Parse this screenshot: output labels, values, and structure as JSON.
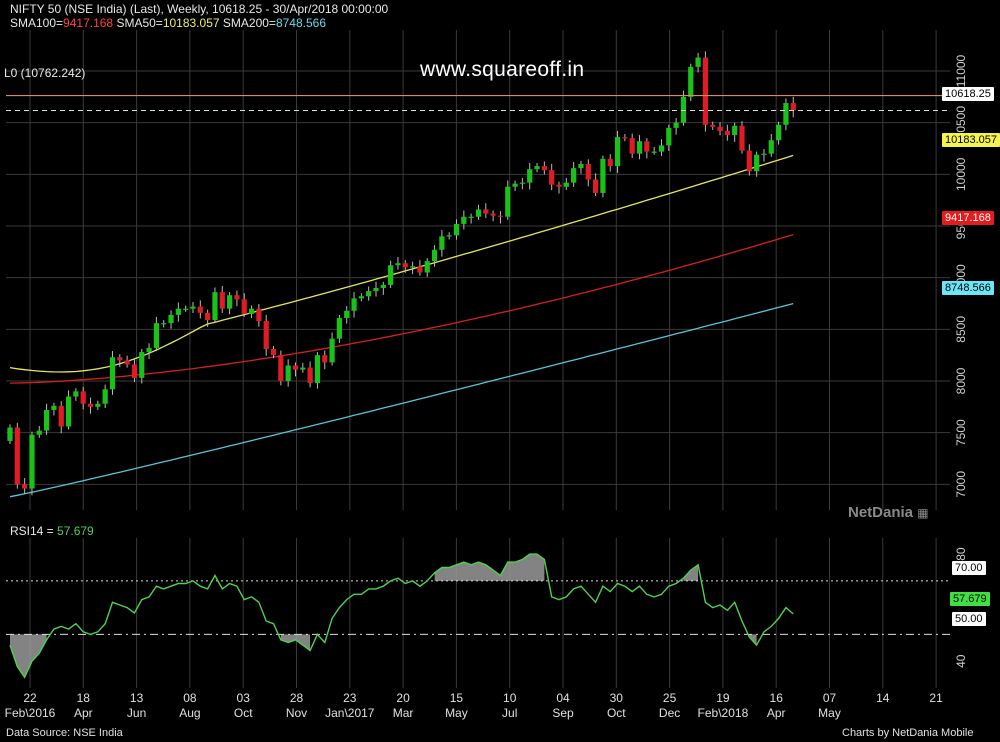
{
  "header": {
    "title": "NIFTY 50 (NSE India) (Last), Weekly, 10618.25 - 30/Apr/2018 00:00:00",
    "sma100_label": "SMA100=",
    "sma100_value": "9417.168",
    "sma50_label": "SMA50=",
    "sma50_value": "10183.057",
    "sma200_label": "SMA200=",
    "sma200_value": "8748.566",
    "level_label": "L0 (10762.242)"
  },
  "watermark_site": "www.squareoff.in",
  "brand": "NetDania",
  "footer": {
    "left": "Data Source: NSE India",
    "right": "Charts by NetDania Mobile"
  },
  "colors": {
    "up": "#19c219",
    "down": "#e01b24",
    "sma50": "#e6e65a",
    "sma100": "#d42020",
    "sma200": "#58c4d8",
    "level": "#e08a5a",
    "rsi": "#4fd24f",
    "grid": "#3a3a3a"
  },
  "chart_data": [
    {
      "type": "candlestick",
      "title": "NIFTY 50 (NSE India) (Last), Weekly",
      "ylim": [
        6800,
        11300
      ],
      "yticks": [
        7000,
        7500,
        8000,
        8500,
        9000,
        9500,
        10000,
        10500,
        11000
      ],
      "x_ticks": [
        {
          "day": "22",
          "month": "Feb\\2016"
        },
        {
          "day": "18",
          "month": "Apr"
        },
        {
          "day": "13",
          "month": "Jun"
        },
        {
          "day": "08",
          "month": "Aug"
        },
        {
          "day": "03",
          "month": "Oct"
        },
        {
          "day": "28",
          "month": "Nov"
        },
        {
          "day": "23",
          "month": "Jan\\2017"
        },
        {
          "day": "20",
          "month": "Mar"
        },
        {
          "day": "15",
          "month": "May"
        },
        {
          "day": "10",
          "month": "Jul"
        },
        {
          "day": "04",
          "month": "Sep"
        },
        {
          "day": "30",
          "month": "Oct"
        },
        {
          "day": "25",
          "month": "Dec"
        },
        {
          "day": "19",
          "month": "Feb\\2018"
        },
        {
          "day": "16",
          "month": "Apr"
        },
        {
          "day": "07",
          "month": "May"
        },
        {
          "day": "14",
          "month": ""
        },
        {
          "day": "21",
          "month": ""
        }
      ],
      "closes": [
        7550,
        7000,
        6960,
        7480,
        7520,
        7720,
        7760,
        7560,
        7850,
        7900,
        7780,
        7750,
        7780,
        7920,
        8230,
        8200,
        8160,
        8030,
        8280,
        8320,
        8560,
        8560,
        8640,
        8700,
        8700,
        8720,
        8660,
        8590,
        8860,
        8700,
        8830,
        8790,
        8650,
        8700,
        8580,
        8310,
        8250,
        8000,
        8150,
        8110,
        8130,
        7980,
        8250,
        8180,
        8410,
        8610,
        8680,
        8800,
        8820,
        8870,
        8900,
        8930,
        9120,
        9140,
        9100,
        9110,
        9050,
        9160,
        9270,
        9400,
        9410,
        9520,
        9590,
        9590,
        9660,
        9620,
        9600,
        9590,
        9880,
        9910,
        9920,
        10050,
        10080,
        10040,
        9900,
        9880,
        9920,
        10060,
        10100,
        9950,
        9820,
        10150,
        10080,
        10360,
        10350,
        10200,
        10320,
        10220,
        10220,
        10280,
        10450,
        10500,
        10750,
        11040,
        11130,
        10480,
        10460,
        10420,
        10380,
        10470,
        10230,
        10030,
        10190,
        10200,
        10330,
        10480,
        10690,
        10618.25
      ],
      "level_line": 10762.242,
      "last_label": "10618.25",
      "sma_labels": {
        "sma50": "10183.057",
        "sma100": "9417.168",
        "sma200": "8748.566"
      },
      "series": [
        {
          "name": "SMA50",
          "start": 8130,
          "end": 10183.057
        },
        {
          "name": "SMA100",
          "start": 7980,
          "end": 9417.168
        },
        {
          "name": "SMA200",
          "start": 6880,
          "end": 8748.566
        }
      ]
    },
    {
      "type": "line",
      "title": "RSI14",
      "value_label": "57.679",
      "ylim": [
        30,
        86
      ],
      "yticks": [
        40,
        80
      ],
      "levels": [
        {
          "value": 70,
          "label": "70.00"
        },
        {
          "value": 50,
          "label": "50.00"
        }
      ],
      "last_label": "57.679",
      "values": [
        46,
        38,
        34,
        40,
        43,
        48,
        52,
        53,
        52,
        54,
        51,
        50,
        51,
        54,
        62,
        61,
        60,
        58,
        63,
        64,
        68,
        67,
        68,
        69,
        69,
        70,
        68,
        67,
        72,
        67,
        69,
        68,
        63,
        64,
        62,
        55,
        54,
        48,
        47,
        48,
        46,
        44,
        50,
        47,
        56,
        60,
        63,
        65,
        65,
        67,
        67,
        68,
        70,
        71,
        69,
        70,
        68,
        70,
        73,
        75,
        75,
        76,
        77,
        76,
        77,
        76,
        74,
        72,
        77,
        77,
        78,
        80,
        80,
        78,
        64,
        63,
        64,
        67,
        68,
        65,
        62,
        68,
        66,
        69,
        68,
        66,
        68,
        65,
        64,
        65,
        68,
        69,
        71,
        74,
        76,
        62,
        60,
        61,
        59,
        62,
        55,
        49,
        46,
        51,
        53,
        56,
        60,
        57.679
      ]
    }
  ]
}
